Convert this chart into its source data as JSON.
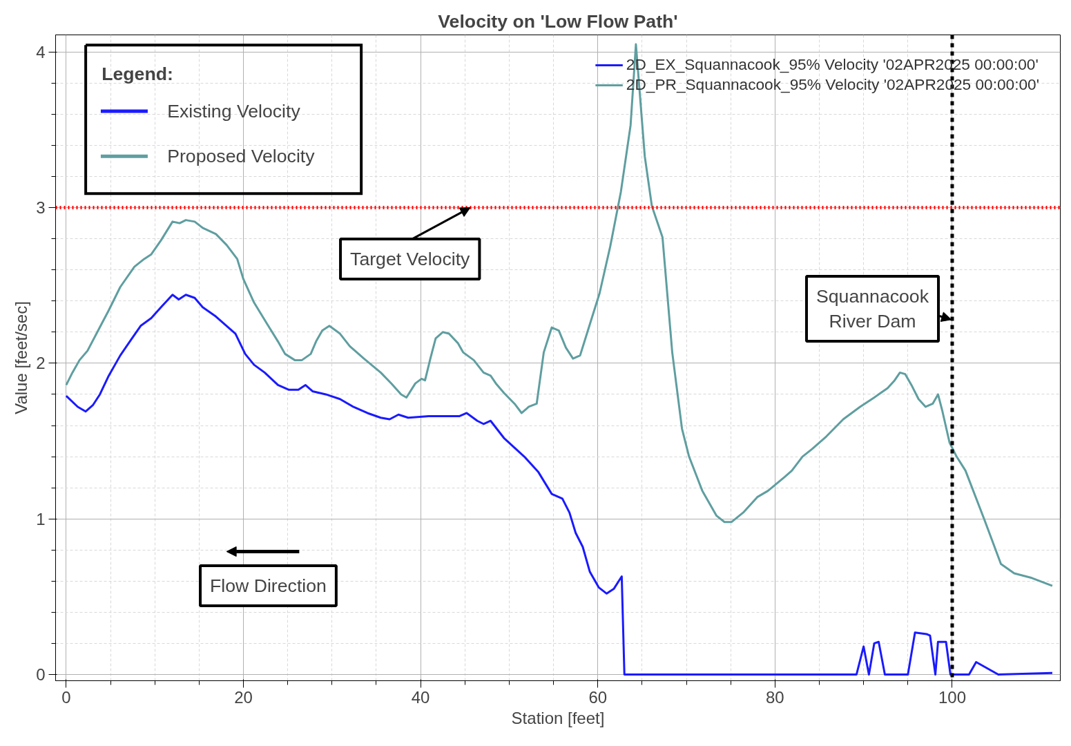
{
  "chart_data": {
    "type": "line",
    "title": "Velocity on 'Low Flow Path'",
    "xlabel": "Station [feet]",
    "ylabel": "Value [feet/sec]",
    "xlim": [
      -1.2,
      112.2
    ],
    "ylim": [
      -0.04,
      4.11
    ],
    "xticks": [
      0,
      20,
      40,
      60,
      80,
      100
    ],
    "yticks": [
      0,
      1,
      2,
      3,
      4
    ],
    "grid": true,
    "legend": "top right",
    "marker": "none",
    "line_style": "solid",
    "series": [
      {
        "name": "2D_EX_Squannacook_95% Velocity '02APR2025 00:00:00'",
        "color": "#1a1aff",
        "x": [
          0,
          1.3,
          2.2,
          3,
          3.8,
          4.8,
          6.1,
          7.3,
          8.4,
          9.6,
          10.7,
          12,
          12.7,
          13.5,
          14.5,
          15.4,
          16.9,
          18.1,
          19.1,
          20.2,
          21.2,
          22.4,
          23.9,
          25.1,
          26.2,
          27,
          27.8,
          29.3,
          30.9,
          32.4,
          34,
          35.5,
          36.5,
          37.5,
          38.6,
          40.9,
          43.2,
          44.4,
          45.2,
          46.4,
          47.1,
          47.9,
          49.4,
          51.7,
          53.3,
          54.8,
          56,
          56.8,
          57.5,
          58.3,
          59.1,
          60.1,
          61,
          61.8,
          62.7,
          63,
          89.2,
          90,
          90.6,
          91.2,
          91.7,
          92.4,
          95,
          95.8,
          97.1,
          97.5,
          98.1,
          98.4,
          99.3,
          99.8,
          101.9,
          102.7,
          105.2,
          111.3
        ],
        "values": [
          1.79,
          1.72,
          1.69,
          1.73,
          1.8,
          1.92,
          2.05,
          2.15,
          2.24,
          2.29,
          2.36,
          2.44,
          2.41,
          2.44,
          2.42,
          2.36,
          2.3,
          2.24,
          2.19,
          2.06,
          1.99,
          1.94,
          1.86,
          1.83,
          1.83,
          1.86,
          1.82,
          1.8,
          1.77,
          1.72,
          1.68,
          1.65,
          1.64,
          1.67,
          1.65,
          1.66,
          1.66,
          1.66,
          1.68,
          1.63,
          1.61,
          1.63,
          1.52,
          1.4,
          1.3,
          1.16,
          1.13,
          1.04,
          0.91,
          0.82,
          0.66,
          0.56,
          0.52,
          0.55,
          0.63,
          0,
          0,
          0.18,
          0,
          0.2,
          0.21,
          0,
          0,
          0.27,
          0.26,
          0.25,
          0,
          0.21,
          0.21,
          0,
          0,
          0.08,
          0,
          0.01
        ]
      },
      {
        "name": "2D_PR_Squannacook_95% Velocity '02APR2025 00:00:00'",
        "color": "#5f9ea0",
        "x": [
          0,
          0.7,
          1.5,
          2.4,
          3.6,
          4.8,
          6.1,
          7.7,
          8.8,
          9.6,
          10.7,
          12,
          12.8,
          13.5,
          14.5,
          15.4,
          16.9,
          18.1,
          19.3,
          20,
          21.2,
          22.7,
          23.9,
          24.7,
          25.8,
          26.6,
          27.6,
          28.2,
          28.9,
          29.7,
          30.9,
          32,
          33.6,
          35.5,
          36.7,
          37.8,
          38.4,
          39.4,
          40.1,
          40.5,
          41.1,
          41.7,
          42.5,
          43.2,
          44.2,
          44.8,
          46,
          47.1,
          47.9,
          48.5,
          49.4,
          50.6,
          51.4,
          52.2,
          53.1,
          53.9,
          54.8,
          55.6,
          56.4,
          57.2,
          58,
          59.1,
          60.2,
          61.4,
          62.6,
          63.7,
          64.3,
          65.3,
          66.1,
          67.3,
          68.4,
          69.5,
          70.3,
          71.8,
          73.4,
          74.3,
          75.1,
          76.4,
          78,
          79.2,
          81.1,
          81.9,
          83.1,
          84.2,
          85.8,
          87.7,
          89.6,
          91.2,
          92.7,
          93.5,
          94.1,
          94.7,
          95.4,
          96.2,
          97,
          97.8,
          98.4,
          98.9,
          99.7,
          100.5,
          101.5,
          103.6,
          105.5,
          107,
          109,
          111.3
        ],
        "values": [
          1.86,
          1.94,
          2.02,
          2.08,
          2.21,
          2.34,
          2.49,
          2.62,
          2.67,
          2.7,
          2.79,
          2.91,
          2.9,
          2.92,
          2.91,
          2.87,
          2.83,
          2.76,
          2.67,
          2.54,
          2.39,
          2.25,
          2.14,
          2.06,
          2.02,
          2.02,
          2.06,
          2.14,
          2.21,
          2.24,
          2.19,
          2.11,
          2.03,
          1.94,
          1.87,
          1.8,
          1.78,
          1.87,
          1.9,
          1.89,
          2.03,
          2.16,
          2.2,
          2.19,
          2.13,
          2.07,
          2.02,
          1.94,
          1.92,
          1.87,
          1.81,
          1.74,
          1.68,
          1.72,
          1.74,
          2.07,
          2.23,
          2.21,
          2.1,
          2.03,
          2.05,
          2.25,
          2.45,
          2.75,
          3.1,
          3.53,
          4.05,
          3.33,
          3.01,
          2.81,
          2.07,
          1.58,
          1.4,
          1.18,
          1.02,
          0.98,
          0.98,
          1.04,
          1.14,
          1.18,
          1.27,
          1.31,
          1.4,
          1.45,
          1.53,
          1.64,
          1.72,
          1.78,
          1.84,
          1.89,
          1.94,
          1.93,
          1.86,
          1.77,
          1.72,
          1.74,
          1.8,
          1.69,
          1.49,
          1.4,
          1.31,
          1.0,
          0.71,
          0.65,
          0.62,
          0.57
        ]
      }
    ],
    "ref_lines": [
      {
        "axis": "y",
        "value": 3,
        "label": "Target Velocity",
        "color": "#ff0000",
        "line_style": "dotted"
      },
      {
        "axis": "x",
        "value": 100,
        "label": "Squannacook\nRiver Dam",
        "color": "#000000",
        "line_style": "dashed"
      }
    ],
    "annotations": [
      "Legend:",
      "Existing Velocity",
      "Proposed Velocity",
      "Flow Direction"
    ]
  }
}
